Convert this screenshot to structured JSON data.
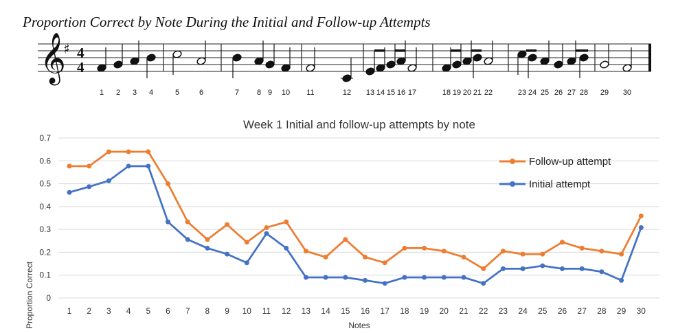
{
  "figure_title": "Proportion Correct by Note During the Initial and Follow-up Attempts",
  "staff": {
    "time_signature": [
      "4",
      "4"
    ],
    "note_numbers": [
      "1",
      "2",
      "3",
      "4",
      "5",
      "6",
      "7",
      "8",
      "9",
      "10",
      "11",
      "12",
      "13",
      "14",
      "15",
      "16",
      "17",
      "18",
      "19",
      "20",
      "21",
      "22",
      "23",
      "24",
      "25",
      "26",
      "27",
      "28",
      "29",
      "30"
    ]
  },
  "colors": {
    "follow_up": "#ED7D31",
    "initial": "#4472C4",
    "grid": "#D9D9D9"
  },
  "chart_data": {
    "type": "line",
    "title": "Week 1 Initial and follow-up attempts by note",
    "xlabel": "Notes",
    "ylabel": "Proportion Correct",
    "ylim": [
      0,
      0.7
    ],
    "yticks": [
      "0",
      "0.1",
      "0.2",
      "0.3",
      "0.4",
      "0.5",
      "0.6",
      "0.7"
    ],
    "grid": true,
    "legend_position": "top-right",
    "categories": [
      "1",
      "2",
      "3",
      "4",
      "5",
      "6",
      "7",
      "8",
      "9",
      "10",
      "11",
      "12",
      "13",
      "14",
      "15",
      "16",
      "17",
      "18",
      "19",
      "20",
      "21",
      "22",
      "23",
      "24",
      "25",
      "26",
      "27",
      "28",
      "29",
      "30"
    ],
    "series": [
      {
        "name": "Follow-up attempt",
        "values": [
          0.577,
          0.577,
          0.64,
          0.64,
          0.64,
          0.5,
          0.333,
          0.256,
          0.321,
          0.244,
          0.308,
          0.333,
          0.205,
          0.179,
          0.256,
          0.179,
          0.154,
          0.218,
          0.218,
          0.205,
          0.179,
          0.128,
          0.205,
          0.192,
          0.192,
          0.244,
          0.218,
          0.205,
          0.192,
          0.359
        ]
      },
      {
        "name": "Initial attempt",
        "values": [
          0.462,
          0.487,
          0.513,
          0.577,
          0.577,
          0.333,
          0.256,
          0.218,
          0.192,
          0.154,
          0.282,
          0.218,
          0.09,
          0.09,
          0.09,
          0.077,
          0.064,
          0.09,
          0.09,
          0.09,
          0.09,
          0.064,
          0.128,
          0.128,
          0.141,
          0.128,
          0.128,
          0.115,
          0.077,
          0.308
        ]
      }
    ]
  }
}
